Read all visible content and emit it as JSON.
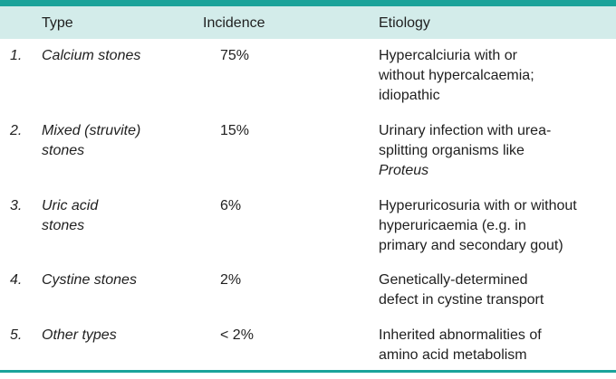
{
  "table": {
    "headers": {
      "type": "Type",
      "incidence": "Incidence",
      "etiology": "Etiology"
    },
    "rows": [
      {
        "number": "1.",
        "type_lines": [
          "Calcium stones"
        ],
        "incidence": "75%",
        "etiology_lines": [
          "Hypercalciuria with or",
          "without hypercalcaemia;",
          "idiopathic"
        ]
      },
      {
        "number": "2.",
        "type_lines": [
          "Mixed (struvite)",
          "stones"
        ],
        "incidence": "15%",
        "etiology_lines": [
          "Urinary infection with urea-",
          "splitting organisms like",
          "Proteus"
        ]
      },
      {
        "number": "3.",
        "type_lines": [
          "Uric acid",
          "stones"
        ],
        "incidence": "6%",
        "etiology_lines": [
          "Hyperuricosuria with or without",
          "hyperuricaemia (e.g. in",
          "primary and secondary gout)"
        ]
      },
      {
        "number": "4.",
        "type_lines": [
          "Cystine stones"
        ],
        "incidence": "2%",
        "etiology_lines": [
          "Genetically-determined",
          "defect in cystine transport"
        ]
      },
      {
        "number": "5.",
        "type_lines": [
          "Other types"
        ],
        "incidence": "< 2%",
        "etiology_lines": [
          "Inherited abnormalities of",
          "amino acid metabolism"
        ]
      }
    ]
  },
  "colors": {
    "rule": "#1aa39a",
    "header_bg": "#d3ecea",
    "text": "#1f1f1f"
  }
}
